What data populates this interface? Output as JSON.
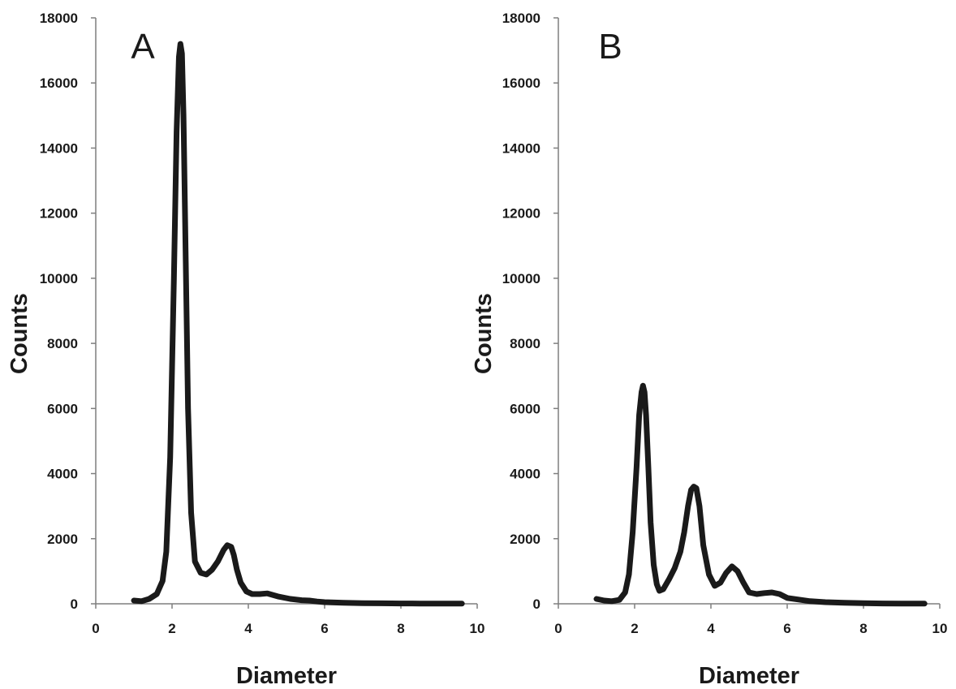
{
  "chart_data": [
    {
      "type": "line",
      "panel_label": "A",
      "xlabel": "Diameter",
      "ylabel": "Counts",
      "xlim": [
        0,
        10
      ],
      "ylim": [
        0,
        18000
      ],
      "xticks": [
        "0",
        "2",
        "4",
        "6",
        "8",
        "10"
      ],
      "yticks": [
        "0",
        "2000",
        "4000",
        "6000",
        "8000",
        "10000",
        "12000",
        "14000",
        "16000",
        "18000"
      ],
      "grid": false,
      "line_color": "#1a1a1a",
      "series": [
        {
          "x": [
            1.0,
            1.2,
            1.4,
            1.6,
            1.75,
            1.85,
            1.95,
            2.05,
            2.12,
            2.18,
            2.22,
            2.26,
            2.3,
            2.36,
            2.42,
            2.5,
            2.6,
            2.75,
            2.9,
            3.05,
            3.2,
            3.35,
            3.45,
            3.55,
            3.62,
            3.7,
            3.8,
            3.95,
            4.1,
            4.3,
            4.5,
            4.8,
            5.1,
            5.4,
            5.6,
            5.8,
            6.0,
            6.5,
            7.0,
            7.5,
            8.0,
            8.5,
            9.0,
            9.6
          ],
          "y": [
            100,
            80,
            150,
            300,
            700,
            1600,
            4500,
            10000,
            14500,
            16800,
            17200,
            16900,
            15000,
            10500,
            6000,
            2800,
            1300,
            950,
            900,
            1050,
            1300,
            1650,
            1800,
            1750,
            1500,
            1050,
            650,
            380,
            300,
            300,
            320,
            220,
            150,
            110,
            100,
            70,
            50,
            30,
            20,
            15,
            10,
            8,
            5,
            5
          ]
        }
      ]
    },
    {
      "type": "line",
      "panel_label": "B",
      "xlabel": "Diameter",
      "ylabel": "Counts",
      "xlim": [
        0,
        10
      ],
      "ylim": [
        0,
        18000
      ],
      "xticks": [
        "0",
        "2",
        "4",
        "6",
        "8",
        "10"
      ],
      "yticks": [
        "0",
        "2000",
        "4000",
        "6000",
        "8000",
        "10000",
        "12000",
        "14000",
        "16000",
        "18000"
      ],
      "grid": false,
      "line_color": "#1a1a1a",
      "series": [
        {
          "x": [
            1.0,
            1.2,
            1.4,
            1.6,
            1.75,
            1.85,
            1.95,
            2.05,
            2.12,
            2.18,
            2.22,
            2.26,
            2.3,
            2.36,
            2.42,
            2.5,
            2.58,
            2.65,
            2.75,
            2.9,
            3.05,
            3.2,
            3.3,
            3.4,
            3.48,
            3.55,
            3.62,
            3.7,
            3.8,
            3.95,
            4.1,
            4.25,
            4.4,
            4.55,
            4.7,
            4.85,
            5.0,
            5.2,
            5.4,
            5.6,
            5.8,
            6.0,
            6.3,
            6.6,
            7.0,
            7.5,
            8.0,
            8.5,
            9.0,
            9.6
          ],
          "y": [
            150,
            100,
            80,
            120,
            350,
            900,
            2200,
            4200,
            5800,
            6500,
            6700,
            6500,
            5800,
            4200,
            2500,
            1200,
            600,
            400,
            450,
            750,
            1100,
            1600,
            2200,
            3000,
            3500,
            3600,
            3550,
            3000,
            1800,
            900,
            550,
            650,
            950,
            1150,
            1000,
            650,
            350,
            300,
            330,
            350,
            300,
            180,
            130,
            80,
            50,
            30,
            20,
            10,
            8,
            5
          ]
        }
      ]
    }
  ]
}
